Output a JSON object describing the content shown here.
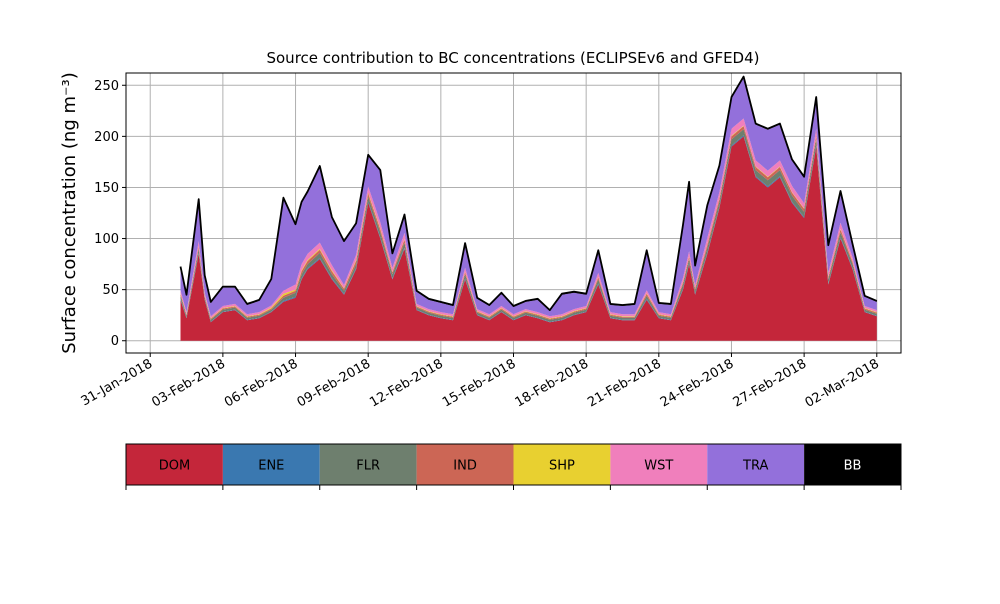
{
  "chart_data": {
    "type": "area",
    "stacked": true,
    "title": "Source contribution to BC concentrations (ECLIPSEv6 and GFED4)",
    "xlabel": "",
    "ylabel": "Surface concentration (ng m⁻³)",
    "ylim": [
      -12,
      262
    ],
    "xlim": [
      "2018-01-30",
      "2018-03-03"
    ],
    "yticks": [
      0,
      50,
      100,
      150,
      200,
      250
    ],
    "xticks": [
      "31-Jan-2018",
      "03-Feb-2018",
      "06-Feb-2018",
      "09-Feb-2018",
      "12-Feb-2018",
      "15-Feb-2018",
      "18-Feb-2018",
      "21-Feb-2018",
      "24-Feb-2018",
      "27-Feb-2018",
      "02-Mar-2018"
    ],
    "xtick_dates": [
      "2018-01-31",
      "2018-02-03",
      "2018-02-06",
      "2018-02-09",
      "2018-02-12",
      "2018-02-15",
      "2018-02-18",
      "2018-02-21",
      "2018-02-24",
      "2018-02-27",
      "2018-03-02"
    ],
    "grid": true,
    "legend_position": "bottom",
    "x": [
      "2018-02-01T06:00",
      "2018-02-01T12:00",
      "2018-02-02T00:00",
      "2018-02-02T06:00",
      "2018-02-02T12:00",
      "2018-02-03T00:00",
      "2018-02-03T12:00",
      "2018-02-04T00:00",
      "2018-02-04T12:00",
      "2018-02-05T00:00",
      "2018-02-05T12:00",
      "2018-02-06T00:00",
      "2018-02-06T06:00",
      "2018-02-06T12:00",
      "2018-02-07T00:00",
      "2018-02-07T12:00",
      "2018-02-08T00:00",
      "2018-02-08T12:00",
      "2018-02-09T00:00",
      "2018-02-09T12:00",
      "2018-02-10T00:00",
      "2018-02-10T12:00",
      "2018-02-11T00:00",
      "2018-02-11T12:00",
      "2018-02-12T00:00",
      "2018-02-12T12:00",
      "2018-02-13T00:00",
      "2018-02-13T12:00",
      "2018-02-14T00:00",
      "2018-02-14T12:00",
      "2018-02-15T00:00",
      "2018-02-15T12:00",
      "2018-02-16T00:00",
      "2018-02-16T12:00",
      "2018-02-17T00:00",
      "2018-02-17T12:00",
      "2018-02-18T00:00",
      "2018-02-18T12:00",
      "2018-02-19T00:00",
      "2018-02-19T12:00",
      "2018-02-20T00:00",
      "2018-02-20T12:00",
      "2018-02-21T00:00",
      "2018-02-21T12:00",
      "2018-02-22T00:00",
      "2018-02-22T06:00",
      "2018-02-22T12:00",
      "2018-02-23T00:00",
      "2018-02-23T12:00",
      "2018-02-24T00:00",
      "2018-02-24T12:00",
      "2018-02-25T00:00",
      "2018-02-25T12:00",
      "2018-02-26T00:00",
      "2018-02-26T12:00",
      "2018-02-27T00:00",
      "2018-02-27T12:00",
      "2018-02-28T00:00",
      "2018-02-28T12:00",
      "2018-03-01T00:00",
      "2018-03-01T12:00",
      "2018-03-02T00:00"
    ],
    "series": [
      {
        "name": "DOM",
        "color": "#C4263A",
        "values": [
          40,
          22,
          85,
          40,
          18,
          28,
          30,
          20,
          22,
          28,
          38,
          42,
          60,
          70,
          80,
          60,
          45,
          70,
          135,
          100,
          60,
          90,
          30,
          25,
          22,
          20,
          60,
          25,
          20,
          28,
          20,
          25,
          22,
          18,
          20,
          25,
          28,
          55,
          22,
          20,
          20,
          40,
          22,
          20,
          50,
          75,
          45,
          85,
          130,
          190,
          200,
          160,
          150,
          160,
          135,
          120,
          190,
          55,
          100,
          70,
          28,
          24
        ]
      },
      {
        "name": "ENE",
        "color": "#3A78B0",
        "values": [
          1,
          0.5,
          1,
          0.5,
          0.5,
          0.5,
          0.5,
          0.5,
          0.5,
          0.5,
          1,
          1,
          1,
          1,
          1,
          1,
          1,
          1,
          1,
          1,
          1,
          1,
          0.5,
          0.5,
          0.5,
          0.5,
          1,
          0.5,
          0.5,
          0.5,
          0.5,
          0.5,
          0.5,
          0.5,
          0.5,
          0.5,
          0.5,
          1,
          0.5,
          0.5,
          0.5,
          1,
          0.5,
          0.5,
          1,
          1,
          1,
          1,
          1,
          1,
          1,
          1,
          1,
          1,
          1,
          1,
          1,
          1,
          1,
          1,
          0.5,
          0.5
        ]
      },
      {
        "name": "FLR",
        "color": "#6E7F6E",
        "values": [
          3,
          2,
          4,
          2,
          2,
          2,
          2,
          2,
          2,
          2,
          3,
          4,
          4,
          4,
          5,
          4,
          3,
          4,
          5,
          5,
          4,
          5,
          2,
          2,
          2,
          2,
          4,
          2,
          2,
          2,
          2,
          2,
          2,
          2,
          2,
          2,
          2,
          4,
          2,
          2,
          2,
          3,
          2,
          2,
          4,
          4,
          3,
          5,
          5,
          6,
          6,
          6,
          6,
          6,
          6,
          5,
          6,
          4,
          5,
          4,
          2,
          2
        ]
      },
      {
        "name": "IND",
        "color": "#CC6655",
        "values": [
          2,
          1,
          2,
          1,
          1,
          1,
          1,
          1,
          1,
          1,
          2,
          2,
          3,
          3,
          3,
          3,
          2,
          3,
          3,
          3,
          2,
          3,
          1,
          1,
          1,
          1,
          2,
          1,
          1,
          1,
          1,
          1,
          1,
          1,
          1,
          1,
          1,
          2,
          1,
          1,
          1,
          2,
          1,
          1,
          2,
          2,
          2,
          3,
          3,
          3,
          3,
          3,
          3,
          3,
          3,
          3,
          3,
          2,
          3,
          2,
          1,
          1
        ]
      },
      {
        "name": "SHP",
        "color": "#E8D030",
        "values": [
          0.5,
          0.5,
          0.5,
          0.5,
          0.5,
          0.5,
          0.5,
          0.5,
          0.5,
          1,
          2,
          1,
          1,
          1,
          1,
          1,
          0.5,
          1,
          1,
          1,
          0.5,
          0.5,
          0.5,
          0.5,
          0.5,
          0.5,
          0.5,
          0.5,
          0.5,
          0.5,
          0.5,
          0.5,
          0.5,
          0.5,
          0.5,
          0.5,
          0.5,
          0.5,
          0.5,
          0.5,
          0.5,
          0.5,
          0.5,
          0.5,
          0.5,
          0.5,
          0.5,
          0.5,
          0.5,
          0.5,
          0.5,
          0.5,
          0.5,
          0.5,
          0.5,
          0.5,
          0.5,
          0.5,
          0.5,
          0.5,
          0.5,
          0.5
        ]
      },
      {
        "name": "WST",
        "color": "#F07FBC",
        "values": [
          3,
          2,
          5,
          3,
          2,
          2,
          2,
          2,
          2,
          2,
          3,
          5,
          6,
          6,
          6,
          5,
          3,
          5,
          6,
          6,
          4,
          6,
          2,
          2,
          2,
          2,
          4,
          2,
          2,
          2,
          2,
          2,
          2,
          2,
          2,
          2,
          2,
          4,
          2,
          2,
          2,
          3,
          2,
          2,
          4,
          5,
          3,
          6,
          6,
          7,
          7,
          6,
          6,
          6,
          6,
          5,
          7,
          4,
          6,
          4,
          2,
          2
        ]
      },
      {
        "name": "TRA",
        "color": "#9370DB",
        "values": [
          22,
          16,
          40,
          16,
          13,
          18,
          16,
          9,
          11,
          25,
          90,
          58,
          60,
          60,
          74,
          46,
          42,
          30,
          30,
          50,
          13,
          17,
          12,
          9,
          9,
          8,
          23,
          10,
          8,
          12,
          7,
          7,
          12,
          5,
          19,
          16,
          11,
          21,
          7,
          8,
          9,
          38,
          8,
          9,
          51,
          67,
          18,
          31,
          25,
          30,
          40,
          35,
          40,
          35,
          25,
          25,
          30,
          26,
          30,
          12,
          9,
          8
        ]
      },
      {
        "name": "BB",
        "color": "#000000",
        "values": [
          1,
          1,
          1,
          1,
          1,
          1,
          1,
          1,
          1,
          1,
          1,
          1,
          1,
          1,
          1,
          1,
          1,
          1,
          1,
          1,
          1,
          1,
          1,
          1,
          1,
          1,
          1,
          1,
          1,
          1,
          1,
          1,
          1,
          1,
          1,
          1,
          1,
          1,
          1,
          1,
          1,
          1,
          1,
          1,
          1,
          1,
          1,
          1,
          1,
          1,
          1,
          1,
          1,
          1,
          1,
          1,
          1,
          1,
          1,
          1,
          1,
          1
        ]
      }
    ]
  }
}
